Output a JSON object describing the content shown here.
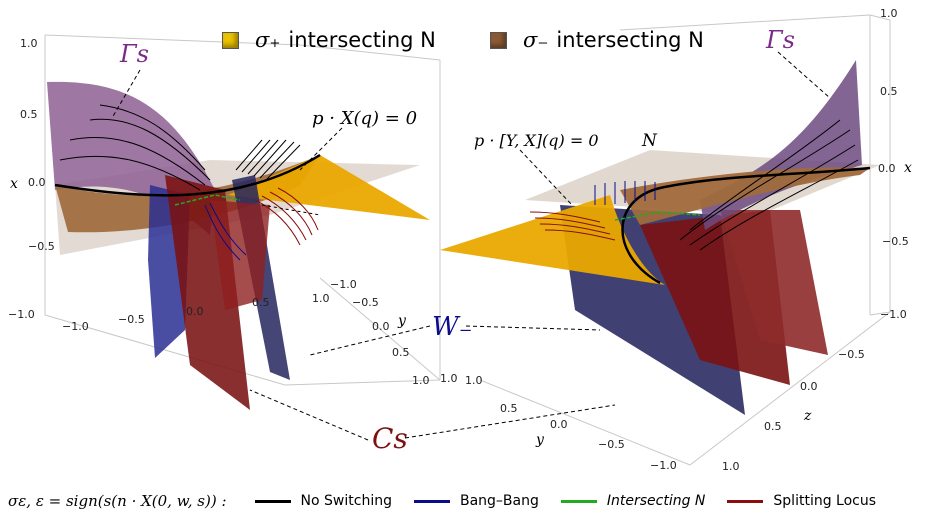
{
  "legend_top": [
    {
      "symbol": "σ₊",
      "label": "intersecting N",
      "color": "#e9c200"
    },
    {
      "symbol": "σ₋",
      "label": "intersecting N",
      "color": "#8b5a35"
    }
  ],
  "labels": {
    "gamma_s_left": "Γs",
    "gamma_s_right": "Γs",
    "pX": "p · X(q) = 0",
    "pYX": "p · [Y, X](q) = 0",
    "N": "N",
    "W_minus": "W₋",
    "C_s": "Cs"
  },
  "left_axes": {
    "x_label": "x",
    "y_label": "y",
    "x_ticks": [
      "1.0",
      "0.5",
      "0.0",
      "−0.5",
      "−1.0"
    ],
    "bottom_ticks": [
      "−1.0",
      "−0.5",
      "0.0",
      "0.5"
    ],
    "y_ticks": [
      "−1.0",
      "−0.5",
      "0.0",
      "0.5",
      "1.0"
    ],
    "extra_tick": "1.0"
  },
  "right_axes": {
    "x_label": "x",
    "y_label": "y",
    "z_label": "z",
    "x_ticks": [
      "1.0",
      "0.5",
      "0.0",
      "−0.5"
    ],
    "z_ticks": [
      "−1.0",
      "−0.5",
      "0.0",
      "0.5",
      "1.0"
    ],
    "y_ticks": [
      "1.0",
      "0.5",
      "0.0",
      "−0.5",
      "−1.0"
    ],
    "extra_tick": "1.0"
  },
  "bottom_legend": {
    "sign_label": "σε,  ε = sign(s(n · X(0, w, s)) :",
    "entries": [
      {
        "label": "No Switching",
        "color": "#000000"
      },
      {
        "label": "Bang–Bang",
        "color": "#0b0b8c"
      },
      {
        "label": "Intersecting N",
        "color": "#22aa22"
      },
      {
        "label": "Splitting Locus",
        "color": "#8b0d0d"
      }
    ]
  }
}
